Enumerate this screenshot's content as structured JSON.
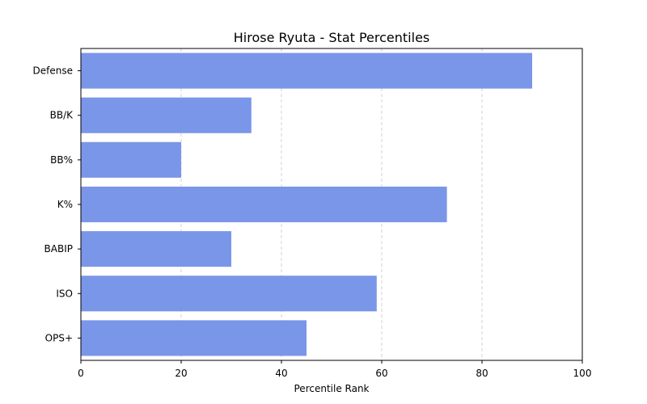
{
  "chart_data": {
    "type": "bar",
    "orientation": "horizontal",
    "title": "Hirose Ryuta - Stat Percentiles",
    "xlabel": "Percentile Rank",
    "ylabel": "",
    "categories": [
      "Defense",
      "BB/K",
      "BB%",
      "K%",
      "BABIP",
      "ISO",
      "OPS+"
    ],
    "values": [
      90,
      34,
      20,
      73,
      30,
      59,
      45
    ],
    "xlim": [
      0,
      100
    ],
    "xticks": [
      0,
      20,
      40,
      60,
      80,
      100
    ],
    "grid": "x-dashed",
    "bar_color": "#7a96e8"
  }
}
